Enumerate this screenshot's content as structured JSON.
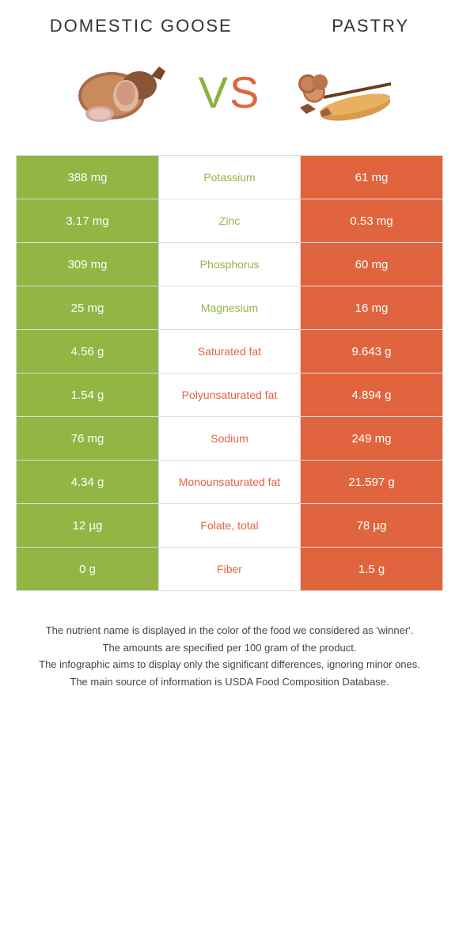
{
  "header": {
    "left_title": "DOMESTIC GOOSE",
    "right_title": "PASTRY"
  },
  "vs": {
    "v": "V",
    "s": "S"
  },
  "colors": {
    "left": "#93b544",
    "right": "#e0653e",
    "left_text_mid": "#93b544",
    "right_text_mid": "#e0653e",
    "caption_text": "#444444",
    "border": "#dddddd",
    "background": "#ffffff"
  },
  "table": {
    "rows": [
      {
        "left": "388 mg",
        "mid": "Potassium",
        "right": "61 mg",
        "winner": "left"
      },
      {
        "left": "3.17 mg",
        "mid": "Zinc",
        "right": "0.53 mg",
        "winner": "left"
      },
      {
        "left": "309 mg",
        "mid": "Phosphorus",
        "right": "60 mg",
        "winner": "left"
      },
      {
        "left": "25 mg",
        "mid": "Magnesium",
        "right": "16 mg",
        "winner": "left"
      },
      {
        "left": "4.56 g",
        "mid": "Saturated fat",
        "right": "9.643 g",
        "winner": "right"
      },
      {
        "left": "1.54 g",
        "mid": "Polyunsaturated fat",
        "right": "4.894 g",
        "winner": "right"
      },
      {
        "left": "76 mg",
        "mid": "Sodium",
        "right": "249 mg",
        "winner": "right"
      },
      {
        "left": "4.34 g",
        "mid": "Monounsaturated fat",
        "right": "21.597 g",
        "winner": "right"
      },
      {
        "left": "12 µg",
        "mid": "Folate, total",
        "right": "78 µg",
        "winner": "right"
      },
      {
        "left": "0 g",
        "mid": "Fiber",
        "right": "1.5 g",
        "winner": "right"
      }
    ]
  },
  "caption": {
    "line1": "The nutrient name is displayed in the color of the food we considered as 'winner'.",
    "line2": "The amounts are specified per 100 gram of the product.",
    "line3": "The infographic aims to display only the significant differences, ignoring minor ones.",
    "line4": "The main source of information is USDA Food Composition Database."
  }
}
